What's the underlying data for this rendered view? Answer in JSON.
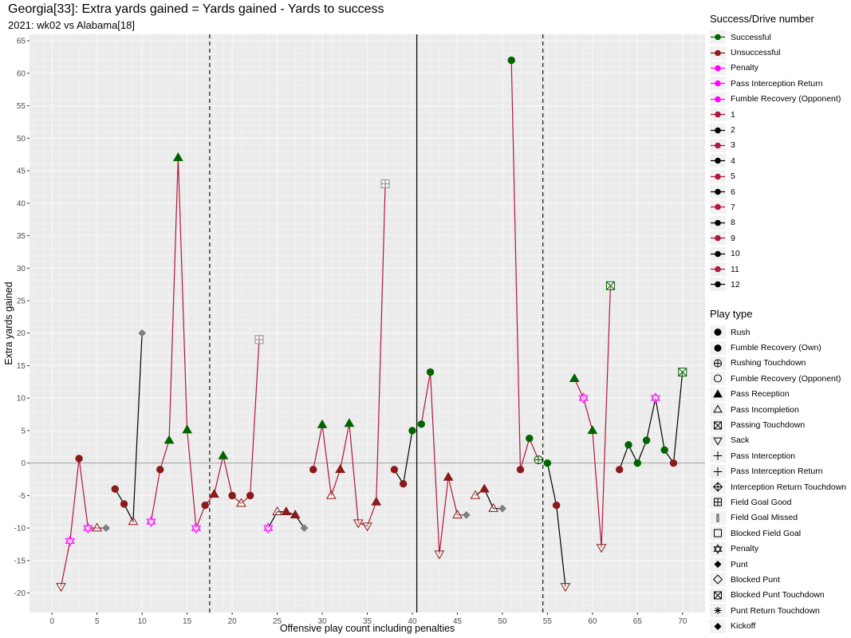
{
  "title": "Georgia[33]: Extra yards gained = Yards gained - Yards to success",
  "subtitle": "2021: wk02 vs Alabama[18]",
  "chart_data": {
    "type": "scatter",
    "xlabel": "Offensive play count including penalties",
    "ylabel": "Extra yards gained",
    "xlim": [
      -2.5,
      72.5
    ],
    "ylim": [
      -23,
      66
    ],
    "x_ticks": [
      0,
      5,
      10,
      15,
      20,
      25,
      30,
      35,
      40,
      45,
      50,
      55,
      60,
      65,
      70
    ],
    "y_ticks": [
      -20,
      -15,
      -10,
      -5,
      0,
      5,
      10,
      15,
      20,
      25,
      30,
      35,
      40,
      45,
      50,
      55,
      60,
      65
    ],
    "vlines_dashed": [
      17.5,
      54.5
    ],
    "vlines_solid": [
      40.5
    ],
    "hline": 0,
    "grid": true,
    "points": [
      {
        "x": 1,
        "y": -19,
        "type": "Sack",
        "outcome": "Unsuccessful",
        "drive": 1
      },
      {
        "x": 2,
        "y": -12,
        "type": "Penalty",
        "outcome": "Penalty",
        "drive": 1
      },
      {
        "x": 3,
        "y": 0.7,
        "type": "Rush",
        "outcome": "Unsuccessful",
        "drive": 1
      },
      {
        "x": 4,
        "y": -10,
        "type": "Penalty",
        "outcome": "Penalty",
        "drive": 1
      },
      {
        "x": 5,
        "y": -10,
        "type": "Pass Incompletion",
        "outcome": "Unsuccessful",
        "drive": 1
      },
      {
        "x": 6,
        "y": -10,
        "type": "Punt",
        "outcome": "Unsuccessful",
        "drive": 1
      },
      {
        "x": 7,
        "y": -4,
        "type": "Rush",
        "outcome": "Unsuccessful",
        "drive": 2
      },
      {
        "x": 8,
        "y": -6.3,
        "type": "Rush",
        "outcome": "Unsuccessful",
        "drive": 2
      },
      {
        "x": 9,
        "y": -9,
        "type": "Pass Incompletion",
        "outcome": "Unsuccessful",
        "drive": 2
      },
      {
        "x": 10,
        "y": 20,
        "type": "Punt",
        "outcome": "Unsuccessful",
        "drive": 2
      },
      {
        "x": 11,
        "y": -9,
        "type": "Penalty",
        "outcome": "Penalty",
        "drive": 3
      },
      {
        "x": 12,
        "y": -1,
        "type": "Rush",
        "outcome": "Unsuccessful",
        "drive": 3
      },
      {
        "x": 13,
        "y": 3.5,
        "type": "Pass Reception",
        "outcome": "Successful",
        "drive": 3
      },
      {
        "x": 14,
        "y": 47,
        "type": "Pass Reception",
        "outcome": "Successful",
        "drive": 3
      },
      {
        "x": 15,
        "y": 5.1,
        "type": "Pass Reception",
        "outcome": "Successful",
        "drive": 3
      },
      {
        "x": 16,
        "y": -10,
        "type": "Penalty",
        "outcome": "Penalty",
        "drive": 3
      },
      {
        "x": 17,
        "y": -6.5,
        "type": "Rush",
        "outcome": "Unsuccessful",
        "drive": 3
      },
      {
        "x": 18,
        "y": -4.8,
        "type": "Pass Reception",
        "outcome": "Unsuccessful",
        "drive": 3
      },
      {
        "x": 19,
        "y": 1.1,
        "type": "Pass Reception",
        "outcome": "Successful",
        "drive": 3
      },
      {
        "x": 20,
        "y": -5,
        "type": "Rush",
        "outcome": "Unsuccessful",
        "drive": 3
      },
      {
        "x": 21,
        "y": -6.2,
        "type": "Pass Incompletion",
        "outcome": "Unsuccessful",
        "drive": 3
      },
      {
        "x": 22,
        "y": -5,
        "type": "Rush",
        "outcome": "Unsuccessful",
        "drive": 3
      },
      {
        "x": 23,
        "y": 19,
        "type": "Field Goal Good",
        "outcome": "Unsuccessful",
        "drive": 3
      },
      {
        "x": 24,
        "y": -10,
        "type": "Penalty",
        "outcome": "Penalty",
        "drive": 4
      },
      {
        "x": 25,
        "y": -7.5,
        "type": "Pass Incompletion",
        "outcome": "Unsuccessful",
        "drive": 4
      },
      {
        "x": 26,
        "y": -7.5,
        "type": "Pass Reception",
        "outcome": "Unsuccessful",
        "drive": 4
      },
      {
        "x": 27,
        "y": -8,
        "type": "Pass Reception",
        "outcome": "Unsuccessful",
        "drive": 4
      },
      {
        "x": 28,
        "y": -10,
        "type": "Punt",
        "outcome": "Unsuccessful",
        "drive": 4
      },
      {
        "x": 29,
        "y": -1,
        "type": "Rush",
        "outcome": "Unsuccessful",
        "drive": 5
      },
      {
        "x": 30,
        "y": 5.9,
        "type": "Pass Reception",
        "outcome": "Successful",
        "drive": 5
      },
      {
        "x": 31,
        "y": -5,
        "type": "Pass Incompletion",
        "outcome": "Unsuccessful",
        "drive": 5
      },
      {
        "x": 32,
        "y": -1,
        "type": "Pass Reception",
        "outcome": "Unsuccessful",
        "drive": 5
      },
      {
        "x": 33,
        "y": 6.1,
        "type": "Pass Reception",
        "outcome": "Successful",
        "drive": 5
      },
      {
        "x": 34,
        "y": -9.2,
        "type": "Sack",
        "outcome": "Unsuccessful",
        "drive": 5
      },
      {
        "x": 35,
        "y": -9.7,
        "type": "Sack",
        "outcome": "Unsuccessful",
        "drive": 5
      },
      {
        "x": 36,
        "y": -6,
        "type": "Pass Reception",
        "outcome": "Unsuccessful",
        "drive": 5
      },
      {
        "x": 37,
        "y": 43,
        "type": "Field Goal Good",
        "outcome": "Unsuccessful",
        "drive": 5
      },
      {
        "x": 38,
        "y": -1,
        "type": "Rush",
        "outcome": "Unsuccessful",
        "drive": 6
      },
      {
        "x": 39,
        "y": -3.2,
        "type": "Rush",
        "outcome": "Unsuccessful",
        "drive": 6
      },
      {
        "x": 40,
        "y": 5,
        "type": "Rush",
        "outcome": "Successful",
        "drive": 6
      },
      {
        "x": 41,
        "y": 6,
        "type": "Rush",
        "outcome": "Successful",
        "drive": 7
      },
      {
        "x": 42,
        "y": 14,
        "type": "Rush",
        "outcome": "Successful",
        "drive": 7
      },
      {
        "x": 43,
        "y": -14,
        "type": "Sack",
        "outcome": "Unsuccessful",
        "drive": 7
      },
      {
        "x": 44,
        "y": -2.2,
        "type": "Pass Reception",
        "outcome": "Unsuccessful",
        "drive": 7
      },
      {
        "x": 45,
        "y": -8,
        "type": "Pass Incompletion",
        "outcome": "Unsuccessful",
        "drive": 7
      },
      {
        "x": 46,
        "y": -8,
        "type": "Punt",
        "outcome": "Unsuccessful",
        "drive": 7
      },
      {
        "x": 47,
        "y": -5,
        "type": "Pass Incompletion",
        "outcome": "Unsuccessful",
        "drive": 8
      },
      {
        "x": 48,
        "y": -4,
        "type": "Pass Reception",
        "outcome": "Unsuccessful",
        "drive": 8
      },
      {
        "x": 49,
        "y": -7,
        "type": "Pass Incompletion",
        "outcome": "Unsuccessful",
        "drive": 8
      },
      {
        "x": 50,
        "y": -7,
        "type": "Punt",
        "outcome": "Unsuccessful",
        "drive": 8
      },
      {
        "x": 51,
        "y": 62,
        "type": "Rush",
        "outcome": "Successful",
        "drive": 9
      },
      {
        "x": 52,
        "y": -1,
        "type": "Rush",
        "outcome": "Unsuccessful",
        "drive": 9
      },
      {
        "x": 53,
        "y": 3.8,
        "type": "Rush",
        "outcome": "Successful",
        "drive": 9
      },
      {
        "x": 54,
        "y": 0.5,
        "type": "Rushing Touchdown",
        "outcome": "Successful",
        "drive": 9
      },
      {
        "x": 55,
        "y": 0,
        "type": "Rush",
        "outcome": "Successful",
        "drive": 10
      },
      {
        "x": 56,
        "y": -6.5,
        "type": "Rush",
        "outcome": "Unsuccessful",
        "drive": 10
      },
      {
        "x": 57,
        "y": -19,
        "type": "Sack",
        "outcome": "Unsuccessful",
        "drive": 10
      },
      {
        "x": 58,
        "y": 13,
        "type": "Pass Reception",
        "outcome": "Successful",
        "drive": 11
      },
      {
        "x": 59,
        "y": 10,
        "type": "Penalty",
        "outcome": "Penalty",
        "drive": 11
      },
      {
        "x": 60,
        "y": 5,
        "type": "Pass Reception",
        "outcome": "Successful",
        "drive": 11
      },
      {
        "x": 61,
        "y": -13,
        "type": "Sack",
        "outcome": "Unsuccessful",
        "drive": 11
      },
      {
        "x": 62,
        "y": 27.3,
        "type": "Passing Touchdown",
        "outcome": "Successful",
        "drive": 11
      },
      {
        "x": 63,
        "y": -1,
        "type": "Rush",
        "outcome": "Unsuccessful",
        "drive": 12
      },
      {
        "x": 64,
        "y": 2.8,
        "type": "Rush",
        "outcome": "Successful",
        "drive": 12
      },
      {
        "x": 65,
        "y": 0,
        "type": "Rush",
        "outcome": "Successful",
        "drive": 12
      },
      {
        "x": 66,
        "y": 3.5,
        "type": "Rush",
        "outcome": "Successful",
        "drive": 12
      },
      {
        "x": 67,
        "y": 10,
        "type": "Penalty",
        "outcome": "Penalty",
        "drive": 12
      },
      {
        "x": 68,
        "y": 2,
        "type": "Rush",
        "outcome": "Successful",
        "drive": 12
      },
      {
        "x": 69,
        "y": 0,
        "type": "Rush",
        "outcome": "Unsuccessful",
        "drive": 12
      },
      {
        "x": 70,
        "y": 14,
        "type": "Passing Touchdown",
        "outcome": "Successful",
        "drive": 12
      }
    ],
    "legend_color": {
      "title": "Success/Drive number",
      "entries": [
        {
          "label": "Successful",
          "color": "#006400"
        },
        {
          "label": "Unsuccessful",
          "color": "#8b1a1a"
        },
        {
          "label": "Penalty",
          "color": "#ff00ff"
        },
        {
          "label": "Pass Interception Return",
          "color": "#ff00ff"
        },
        {
          "label": "Fumble Recovery (Opponent)",
          "color": "#ff00ff"
        },
        {
          "label": "1",
          "color": "#b0173a"
        },
        {
          "label": "2",
          "color": "#000000"
        },
        {
          "label": "3",
          "color": "#b0173a"
        },
        {
          "label": "4",
          "color": "#000000"
        },
        {
          "label": "5",
          "color": "#b0173a"
        },
        {
          "label": "6",
          "color": "#000000"
        },
        {
          "label": "7",
          "color": "#b0173a"
        },
        {
          "label": "8",
          "color": "#000000"
        },
        {
          "label": "9",
          "color": "#b0173a"
        },
        {
          "label": "10",
          "color": "#000000"
        },
        {
          "label": "11",
          "color": "#b0173a"
        },
        {
          "label": "12",
          "color": "#000000"
        }
      ]
    },
    "legend_shape": {
      "title": "Play type",
      "entries": [
        {
          "label": "Rush",
          "shape": "circle-filled"
        },
        {
          "label": "Fumble Recovery (Own)",
          "shape": "circle-filled"
        },
        {
          "label": "Rushing Touchdown",
          "shape": "circle-plus"
        },
        {
          "label": "Fumble Recovery (Opponent)",
          "shape": "circle-open"
        },
        {
          "label": "Pass Reception",
          "shape": "triangle-filled"
        },
        {
          "label": "Pass Incompletion",
          "shape": "triangle-open"
        },
        {
          "label": "Passing Touchdown",
          "shape": "square-x"
        },
        {
          "label": "Sack",
          "shape": "triangle-down-open"
        },
        {
          "label": "Pass Interception",
          "shape": "plus"
        },
        {
          "label": "Pass Interception Return",
          "shape": "plus"
        },
        {
          "label": "Interception Return Touchdown",
          "shape": "diamond-plus"
        },
        {
          "label": "Field Goal Good",
          "shape": "square-plus"
        },
        {
          "label": "Field Goal Missed",
          "shape": "bar"
        },
        {
          "label": "Blocked Field Goal",
          "shape": "square-open"
        },
        {
          "label": "Penalty",
          "shape": "star-of-david"
        },
        {
          "label": "Punt",
          "shape": "diamond-filled"
        },
        {
          "label": "Blocked Punt",
          "shape": "diamond-open"
        },
        {
          "label": "Blocked Punt Touchdown",
          "shape": "square-x"
        },
        {
          "label": "Punt Return Touchdown",
          "shape": "asterisk"
        },
        {
          "label": "Kickoff",
          "shape": "diamond-filled"
        }
      ]
    }
  }
}
